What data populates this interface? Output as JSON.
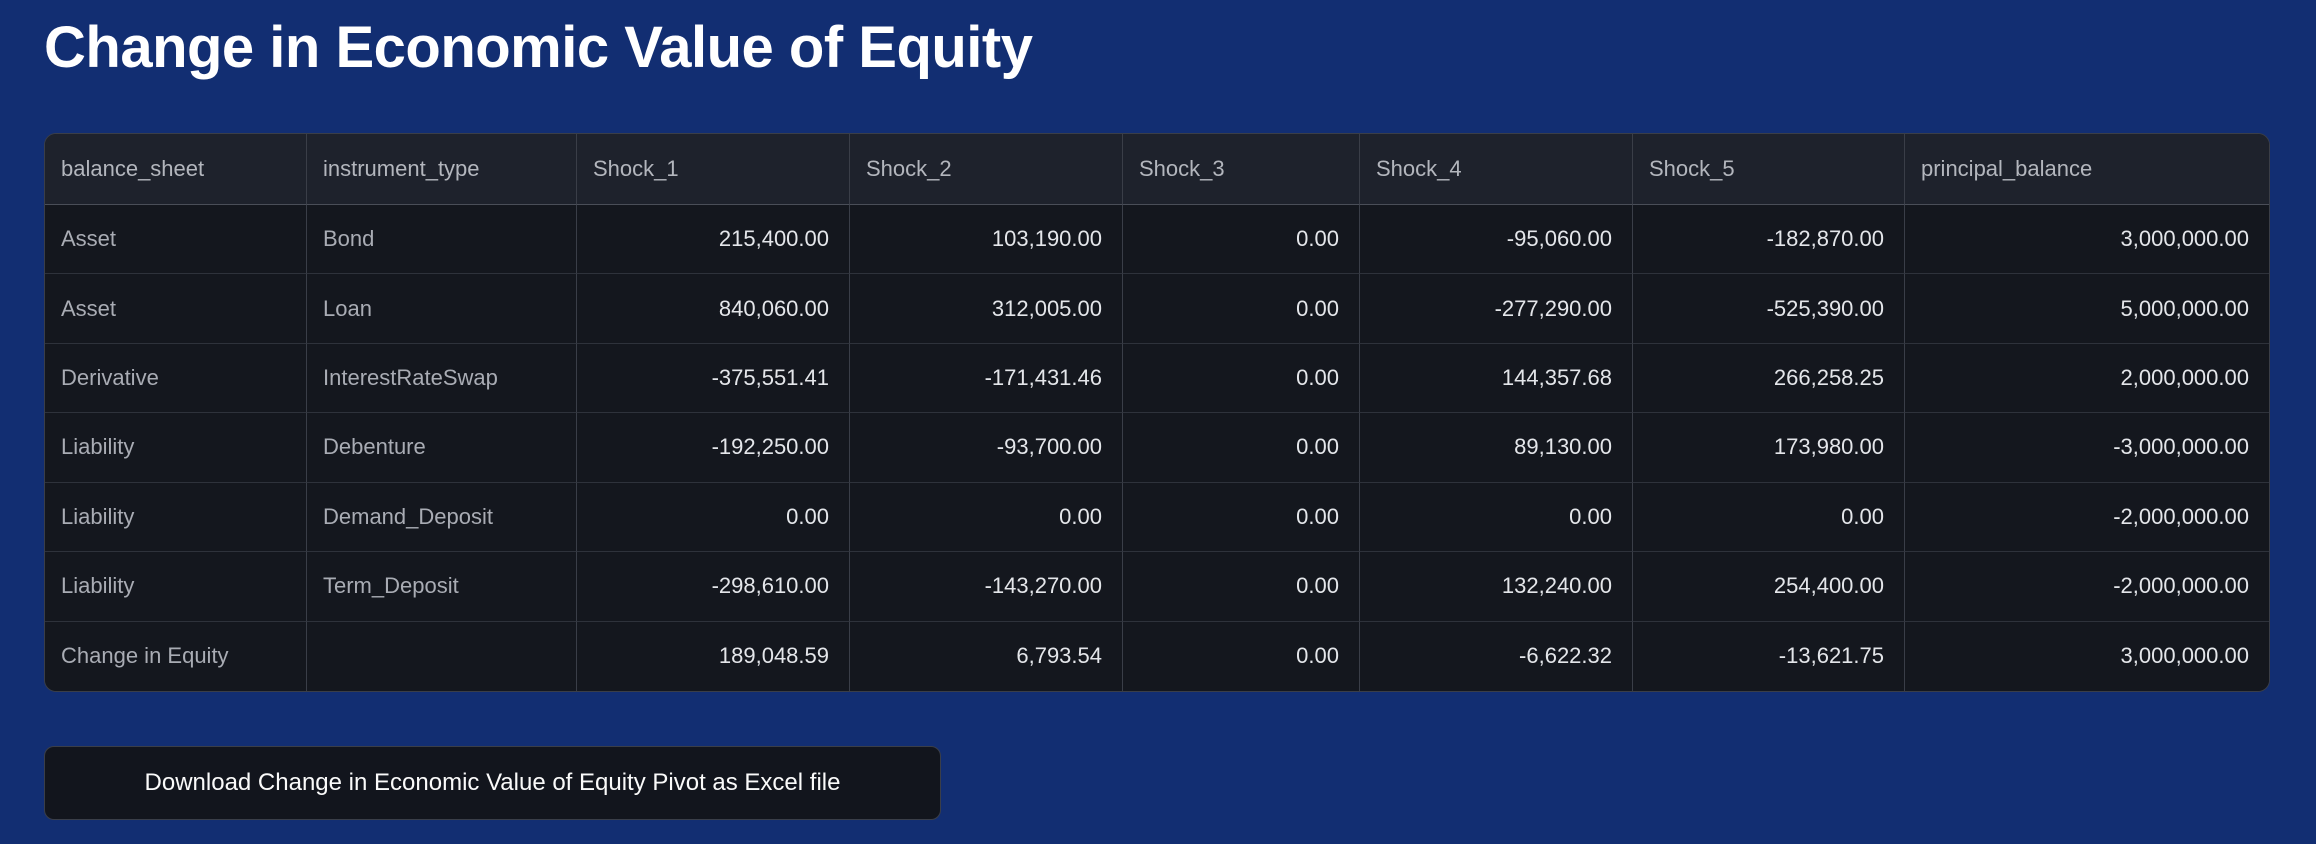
{
  "page": {
    "title": "Change in Economic Value of Equity"
  },
  "table": {
    "columns": [
      "balance_sheet",
      "instrument_type",
      "Shock_1",
      "Shock_2",
      "Shock_3",
      "Shock_4",
      "Shock_5",
      "principal_balance"
    ],
    "rows": [
      [
        "Asset",
        "Bond",
        "215,400.00",
        "103,190.00",
        "0.00",
        "-95,060.00",
        "-182,870.00",
        "3,000,000.00"
      ],
      [
        "Asset",
        "Loan",
        "840,060.00",
        "312,005.00",
        "0.00",
        "-277,290.00",
        "-525,390.00",
        "5,000,000.00"
      ],
      [
        "Derivative",
        "InterestRateSwap",
        "-375,551.41",
        "-171,431.46",
        "0.00",
        "144,357.68",
        "266,258.25",
        "2,000,000.00"
      ],
      [
        "Liability",
        "Debenture",
        "-192,250.00",
        "-93,700.00",
        "0.00",
        "89,130.00",
        "173,980.00",
        "-3,000,000.00"
      ],
      [
        "Liability",
        "Demand_Deposit",
        "0.00",
        "0.00",
        "0.00",
        "0.00",
        "0.00",
        "-2,000,000.00"
      ],
      [
        "Liability",
        "Term_Deposit",
        "-298,610.00",
        "-143,270.00",
        "0.00",
        "132,240.00",
        "254,400.00",
        "-2,000,000.00"
      ],
      [
        "Change in Equity",
        "",
        "189,048.59",
        "6,793.54",
        "0.00",
        "-6,622.32",
        "-13,621.75",
        "3,000,000.00"
      ]
    ]
  },
  "download_button": {
    "label": "Download Change in Economic Value of Equity Pivot as Excel file"
  },
  "colors": {
    "page-bg": "#122E72",
    "header-bg": "#1E222C",
    "row-bg": "#14171E",
    "header-text": "#B3B6BD",
    "label-text": "#A9ACB4",
    "num-text": "#E4E6EA",
    "title-text": "#FFFFFF",
    "btn-bg": "#12151D",
    "btn-border": "#3A3E48",
    "btn-text": "#FAFAFA"
  }
}
